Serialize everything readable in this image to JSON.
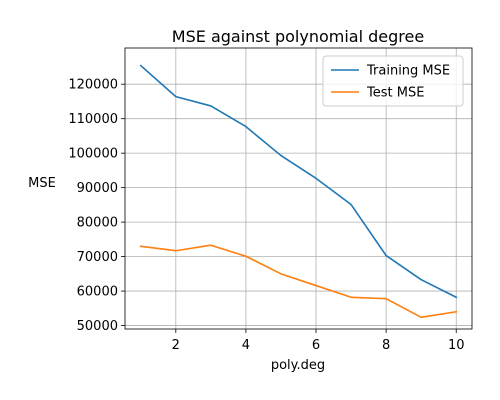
{
  "chart_data": {
    "type": "line",
    "title": "MSE against polynomial degree",
    "xlabel": "poly.deg",
    "ylabel": "MSE",
    "xlim": [
      0.55,
      10.45
    ],
    "ylim": [
      49000,
      130500
    ],
    "xticks": [
      2,
      4,
      6,
      8,
      10
    ],
    "yticks": [
      50000,
      60000,
      70000,
      80000,
      90000,
      100000,
      110000,
      120000
    ],
    "grid": true,
    "legend_position": "upper right",
    "x": [
      1,
      2,
      3,
      4,
      5,
      6,
      7,
      8,
      9,
      10
    ],
    "series": [
      {
        "name": "Training MSE",
        "color": "#1f77b4",
        "values": [
          125400,
          116400,
          113700,
          107700,
          99300,
          92700,
          85100,
          70300,
          63300,
          58200
        ]
      },
      {
        "name": "Test MSE",
        "color": "#ff7f0e",
        "values": [
          73000,
          71700,
          73300,
          70100,
          65000,
          61600,
          58200,
          57800,
          52400,
          54000
        ]
      }
    ]
  }
}
